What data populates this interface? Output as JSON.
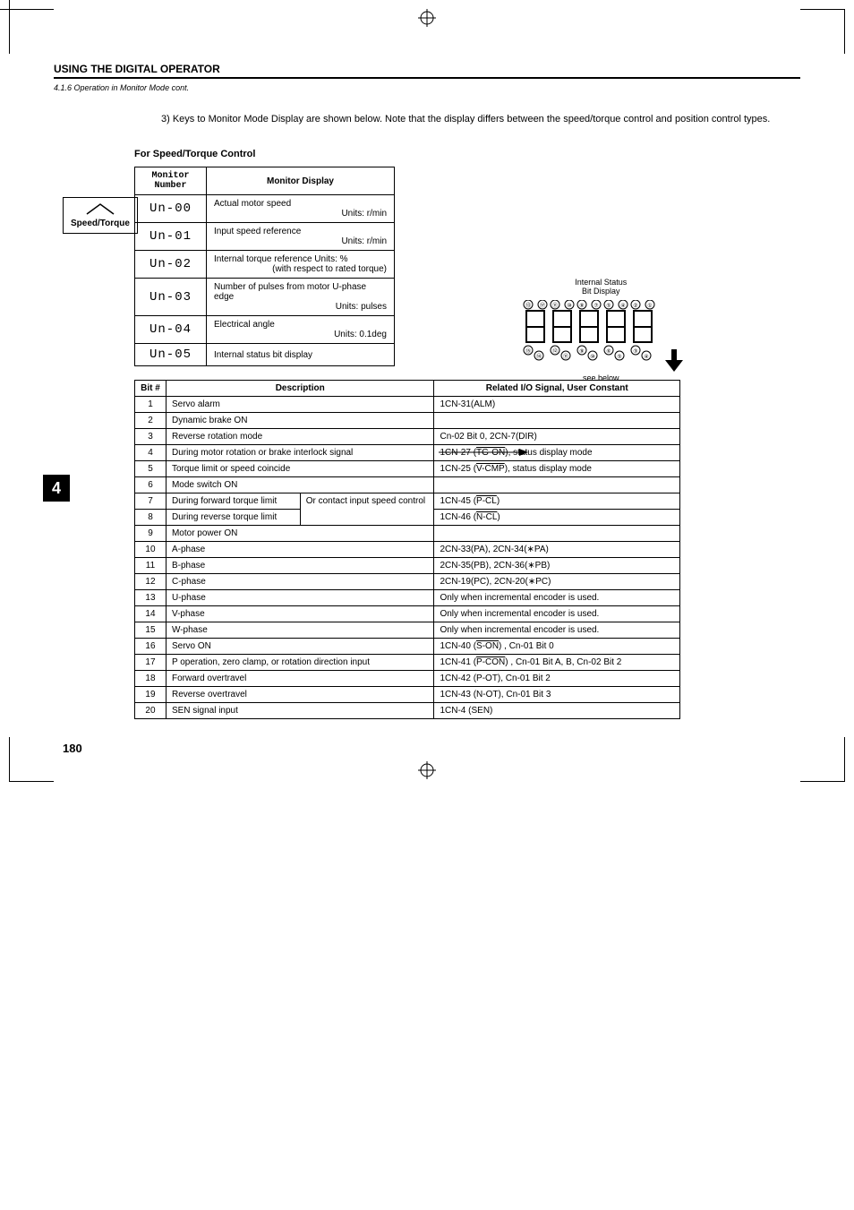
{
  "header": {
    "title": "USING THE DIGITAL OPERATOR",
    "subtitle": "4.1.6 Operation in Monitor Mode cont."
  },
  "intro": "3) Keys to Monitor Mode Display are shown below. Note that the display differs between the speed/torque control and position control types.",
  "sidebox": "Speed/Torque",
  "section_title": "For Speed/Torque Control",
  "monitor_head": {
    "num": "Monitor Number",
    "disp": "Monitor Display"
  },
  "monitor": [
    {
      "num": "Un-00",
      "line1": "Actual motor speed",
      "line2": "Units: r/min"
    },
    {
      "num": "Un-01",
      "line1": "Input speed reference",
      "line2": "Units: r/min"
    },
    {
      "num": "Un-02",
      "line1": "Internal torque reference        Units: %",
      "line2": "(with respect to rated torque)"
    },
    {
      "num": "Un-03",
      "line1": "Number of pulses from motor U-phase edge",
      "line2": "Units: pulses"
    },
    {
      "num": "Un-04",
      "line1": "Electrical angle",
      "line2": "Units: 0.1deg"
    },
    {
      "num": "Un-05",
      "line1": "Internal status bit display",
      "line2": ""
    }
  ],
  "diagram_label1": "Internal Status",
  "diagram_label2": "Bit Display",
  "diagram_below": "see below",
  "bit_head": {
    "bit": "Bit #",
    "desc": "Description",
    "io": "Related I/O Signal, User Constant"
  },
  "bits": [
    {
      "n": "1",
      "desc": "Servo alarm",
      "io": "1CN-31(ALM)"
    },
    {
      "n": "2",
      "desc": "Dynamic brake ON",
      "io": ""
    },
    {
      "n": "3",
      "desc": "Reverse rotation mode",
      "io": "Cn-02 Bit 0, 2CN-7(DIR)"
    },
    {
      "n": "4",
      "desc": "During motor rotation or brake interlock signal",
      "io": "1CN-27 (<span class=\"overline\">TG-ON</span>), status display mode"
    },
    {
      "n": "5",
      "desc": "Torque limit or speed coincide",
      "io": "1CN-25 (<span class=\"overline\">V-CMP</span>), status display mode"
    },
    {
      "n": "6",
      "desc": "Mode switch ON",
      "io": ""
    },
    {
      "n": "7",
      "desc_l": "During forward torque limit",
      "desc_r": "Or contact input speed control",
      "io": "1CN-45 (<span class=\"overline\">P-CL</span>)"
    },
    {
      "n": "8",
      "desc_l": "During reverse torque limit",
      "desc_r": "",
      "io": "1CN-46 (<span class=\"overline\">N-CL</span>)"
    },
    {
      "n": "9",
      "desc": "Motor power ON",
      "io": ""
    },
    {
      "n": "10",
      "desc": "A-phase",
      "io": "2CN-33(PA), 2CN-34(∗PA)"
    },
    {
      "n": "11",
      "desc": "B-phase",
      "io": "2CN-35(PB), 2CN-36(∗PB)"
    },
    {
      "n": "12",
      "desc": "C-phase",
      "io": "2CN-19(PC), 2CN-20(∗PC)"
    },
    {
      "n": "13",
      "desc": "U-phase",
      "io": "Only when incremental encoder is used."
    },
    {
      "n": "14",
      "desc": "V-phase",
      "io": "Only when incremental encoder is used."
    },
    {
      "n": "15",
      "desc": "W-phase",
      "io": "Only when incremental encoder is used."
    },
    {
      "n": "16",
      "desc": "Servo ON",
      "io": "1CN-40 (<span class=\"overline\">S-ON</span>) , Cn-01 Bit 0"
    },
    {
      "n": "17",
      "desc": "P operation, zero clamp, or rotation direction input",
      "io": "1CN-41 (<span class=\"overline\">P-CON</span>) , Cn-01 Bit A, B, Cn-02 Bit 2"
    },
    {
      "n": "18",
      "desc": "Forward overtravel",
      "io": "1CN-42 (P-OT), Cn-01 Bit 2"
    },
    {
      "n": "19",
      "desc": "Reverse overtravel",
      "io": "1CN-43 (N-OT), Cn-01 Bit 3"
    },
    {
      "n": "20",
      "desc": "SEN signal input",
      "io": "1CN-4 (SEN)"
    }
  ],
  "page": "180",
  "chapter": "4"
}
